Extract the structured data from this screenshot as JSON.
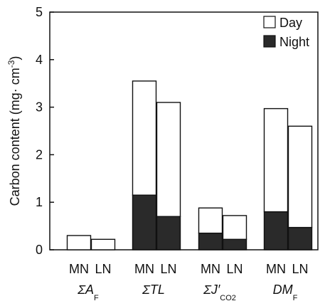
{
  "chart_data": {
    "type": "bar",
    "stacked": true,
    "ylabel": {
      "main": "Carbon content (mg· cm",
      "sup": "-3",
      "tail": ")"
    },
    "ylim": [
      0,
      5
    ],
    "yticks": [
      "0",
      "1",
      "2",
      "3",
      "4",
      "5"
    ],
    "groups": [
      {
        "label": "ΣA",
        "sub": "F",
        "categories": [
          "MN",
          "LN"
        ]
      },
      {
        "label": "ΣTL",
        "sub": "",
        "categories": [
          "MN",
          "LN"
        ]
      },
      {
        "label": "ΣJ′",
        "sub": "CO2",
        "categories": [
          "MN",
          "LN"
        ]
      },
      {
        "label": "DM",
        "sub": "F",
        "categories": [
          "MN",
          "LN"
        ]
      }
    ],
    "series": [
      {
        "name": "Night",
        "color": "#2a2a2a",
        "values": [
          0.0,
          0.0,
          1.15,
          0.7,
          0.35,
          0.22,
          0.8,
          0.47
        ]
      },
      {
        "name": "Day",
        "color": "#ffffff",
        "values": [
          0.3,
          0.22,
          2.4,
          2.4,
          0.53,
          0.5,
          2.17,
          2.13
        ]
      }
    ],
    "legend": {
      "placement": "top-right",
      "entries": [
        "Day",
        "Night"
      ]
    }
  }
}
